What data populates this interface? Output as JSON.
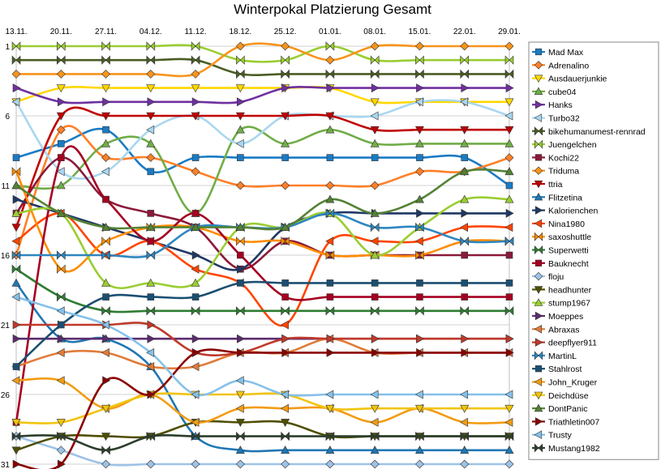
{
  "chart_data": {
    "type": "line",
    "title": "Winterpokal Platzierung Gesamt",
    "xlabel": "",
    "ylabel": "",
    "categories": [
      "13.11.",
      "20.11.",
      "27.11.",
      "04.12.",
      "11.12.",
      "18.12.",
      "25.12.",
      "01.01.",
      "08.01.",
      "15.01.",
      "22.01.",
      "29.01."
    ],
    "y_ticks": [
      "1",
      "6",
      "11",
      "16",
      "21",
      "26",
      "31"
    ],
    "ylim": [
      1,
      31
    ],
    "y_reversed": true,
    "grid": true,
    "legend_position": "right",
    "series": [
      {
        "name": "Mad Max",
        "color": "#1a7bc4",
        "marker": "square",
        "values": [
          9,
          8,
          7,
          10,
          9,
          9,
          9,
          9,
          9,
          9,
          9,
          11
        ]
      },
      {
        "name": "Adrenalino",
        "color": "#ff7f27",
        "marker": "diamond",
        "values": [
          16,
          7,
          9,
          9,
          10,
          11,
          11,
          11,
          11,
          10,
          10,
          9
        ]
      },
      {
        "name": "Ausdauerjunkie",
        "color": "#ffd700",
        "marker": "tri-down",
        "values": [
          5,
          4,
          4,
          4,
          4,
          4,
          4,
          4,
          5,
          5,
          5,
          5
        ]
      },
      {
        "name": "cube04",
        "color": "#70ad47",
        "marker": "tri-up",
        "values": [
          11,
          11,
          8,
          8,
          13,
          7,
          8,
          7,
          8,
          8,
          8,
          8
        ]
      },
      {
        "name": "Hanks",
        "color": "#7030a0",
        "marker": "tri-right",
        "values": [
          4,
          5,
          5,
          5,
          5,
          5,
          4,
          4,
          4,
          4,
          4,
          4
        ]
      },
      {
        "name": "Turbo32",
        "color": "#a9d7f0",
        "marker": "tri-left",
        "values": [
          5,
          10,
          10,
          7,
          6,
          8,
          6,
          6,
          6,
          5,
          5,
          6
        ]
      },
      {
        "name": "bikehumanumest-rennrad",
        "color": "#4a5d23",
        "marker": "bowtie",
        "values": [
          2,
          2,
          2,
          2,
          2,
          3,
          3,
          3,
          3,
          3,
          3,
          3
        ]
      },
      {
        "name": "Juengelchen",
        "color": "#9acd32",
        "marker": "bowtie",
        "values": [
          1,
          1,
          1,
          1,
          1,
          2,
          2,
          1,
          2,
          2,
          2,
          2
        ]
      },
      {
        "name": "Kochi22",
        "color": "#8b1a3a",
        "marker": "square",
        "values": [
          13,
          9,
          12,
          13,
          14,
          17,
          15,
          16,
          16,
          16,
          16,
          16
        ]
      },
      {
        "name": "Triduma",
        "color": "#f7941d",
        "marker": "diamond",
        "values": [
          3,
          3,
          3,
          3,
          3,
          1,
          1,
          2,
          1,
          1,
          1,
          1
        ]
      },
      {
        "name": "ttria",
        "color": "#c00000",
        "marker": "tri-down",
        "values": [
          14,
          6,
          6,
          6,
          6,
          6,
          6,
          6,
          7,
          7,
          7,
          7
        ]
      },
      {
        "name": "Flitzetina",
        "color": "#1f77b4",
        "marker": "tri-up",
        "values": [
          18,
          22,
          22,
          24,
          29,
          30,
          30,
          30,
          30,
          30,
          30,
          30
        ]
      },
      {
        "name": "Kalorienchen",
        "color": "#1f3864",
        "marker": "tri-right",
        "values": [
          12,
          13,
          14,
          15,
          16,
          17,
          14,
          13,
          13,
          13,
          13,
          13
        ]
      },
      {
        "name": "Nina1980",
        "color": "#ff4500",
        "marker": "tri-left",
        "values": [
          15,
          13,
          16,
          15,
          17,
          18,
          21,
          15,
          15,
          15,
          14,
          14
        ]
      },
      {
        "name": "saxoshuttle",
        "color": "#ff8c00",
        "marker": "bowtie",
        "values": [
          10,
          17,
          15,
          14,
          14,
          15,
          15,
          16,
          16,
          16,
          15,
          15
        ]
      },
      {
        "name": "Superwetti",
        "color": "#2e7d32",
        "marker": "bowtie",
        "values": [
          17,
          19,
          20,
          20,
          20,
          20,
          20,
          20,
          20,
          20,
          20,
          20
        ]
      },
      {
        "name": "Bauknecht",
        "color": "#a50021",
        "marker": "square",
        "values": [
          28,
          9,
          12,
          15,
          13,
          16,
          19,
          19,
          19,
          19,
          19,
          19
        ]
      },
      {
        "name": "floju",
        "color": "#9dc3e6",
        "marker": "diamond",
        "values": [
          29,
          30,
          31,
          31,
          31,
          31,
          31,
          31,
          31,
          31,
          31,
          31
        ]
      },
      {
        "name": "headhunter",
        "color": "#4f4f00",
        "marker": "tri-down",
        "values": [
          30,
          29,
          29,
          29,
          28,
          28,
          28,
          29,
          29,
          29,
          29,
          29
        ]
      },
      {
        "name": "stump1967",
        "color": "#9acd32",
        "marker": "tri-up",
        "values": [
          13,
          13,
          18,
          18,
          18,
          14,
          14,
          13,
          16,
          14,
          12,
          12
        ]
      },
      {
        "name": "Moeppes",
        "color": "#5b2c6f",
        "marker": "tri-right",
        "values": [
          22,
          22,
          22,
          22,
          22,
          22,
          22,
          22,
          22,
          22,
          22,
          22
        ]
      },
      {
        "name": "Abraxas",
        "color": "#e07b39",
        "marker": "tri-left",
        "values": [
          24,
          23,
          23,
          24,
          24,
          23,
          23,
          22,
          23,
          23,
          23,
          23
        ]
      },
      {
        "name": "deepflyer911",
        "color": "#c0392b",
        "marker": "tri-right",
        "values": [
          21,
          21,
          21,
          21,
          23,
          23,
          22,
          22,
          22,
          22,
          22,
          22
        ]
      },
      {
        "name": "MartinL",
        "color": "#2e86c1",
        "marker": "bowtie",
        "values": [
          16,
          16,
          16,
          16,
          14,
          14,
          14,
          13,
          14,
          14,
          15,
          15
        ]
      },
      {
        "name": "Stahlrost",
        "color": "#1b4f72",
        "marker": "square",
        "values": [
          24,
          21,
          19,
          19,
          19,
          18,
          18,
          18,
          18,
          18,
          18,
          18
        ]
      },
      {
        "name": "John_Kruger",
        "color": "#f39c12",
        "marker": "tri-left",
        "values": [
          25,
          25,
          27,
          26,
          28,
          27,
          27,
          27,
          28,
          27,
          28,
          28
        ]
      },
      {
        "name": "Deichdüse",
        "color": "#f1c40f",
        "marker": "tri-down",
        "values": [
          28,
          28,
          27,
          26,
          26,
          26,
          26,
          27,
          27,
          27,
          27,
          27
        ]
      },
      {
        "name": "DontPanic",
        "color": "#548235",
        "marker": "tri-up",
        "values": [
          11,
          13,
          14,
          14,
          14,
          14,
          14,
          12,
          13,
          12,
          10,
          10
        ]
      },
      {
        "name": "Triathletin007",
        "color": "#8b0000",
        "marker": "tri-right",
        "values": [
          31,
          31,
          25,
          26,
          23,
          23,
          23,
          23,
          23,
          23,
          23,
          23
        ]
      },
      {
        "name": "Trusty",
        "color": "#85c1e9",
        "marker": "tri-left",
        "values": [
          19,
          20,
          21,
          23,
          26,
          25,
          26,
          26,
          26,
          26,
          26,
          26
        ]
      },
      {
        "name": "Mustang1982",
        "color": "#2c3e2d",
        "marker": "bowtie",
        "values": [
          29,
          29,
          30,
          29,
          29,
          29,
          29,
          29,
          29,
          29,
          29,
          29
        ]
      }
    ]
  }
}
